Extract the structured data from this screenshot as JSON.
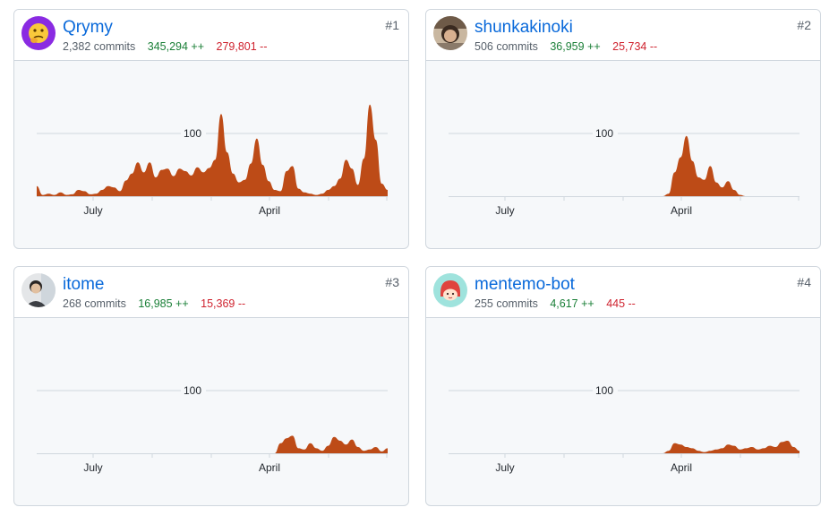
{
  "colors": {
    "area": "#bd4b17",
    "link": "#0969da",
    "additions": "#1a7f37",
    "deletions": "#cf222e"
  },
  "contributors": [
    {
      "username": "Qrymy",
      "rank": "#1",
      "commits": "2,382 commits",
      "additions": "345,294 ++",
      "deletions": "279,801 --",
      "avatar_icon": "thinking-face-icon",
      "chart_data": {
        "type": "area",
        "y_tick": "100",
        "x_labels": [
          "July",
          "April"
        ],
        "values": [
          16,
          2,
          4,
          2,
          6,
          2,
          3,
          10,
          8,
          3,
          4,
          10,
          16,
          14,
          8,
          25,
          36,
          54,
          38,
          54,
          30,
          42,
          44,
          32,
          44,
          40,
          33,
          46,
          38,
          45,
          58,
          131,
          70,
          36,
          22,
          26,
          52,
          92,
          50,
          24,
          10,
          8,
          40,
          48,
          12,
          6,
          4,
          2,
          4,
          10,
          16,
          28,
          58,
          44,
          18,
          60,
          146,
          90,
          20,
          10
        ]
      }
    },
    {
      "username": "shunkakinoki",
      "rank": "#2",
      "commits": "506 commits",
      "additions": "36,959 ++",
      "deletions": "25,734 --",
      "avatar_icon": "photo-avatar-icon",
      "chart_data": {
        "type": "area",
        "y_tick": "100",
        "x_labels": [
          "July",
          "April"
        ],
        "values": [
          0,
          0,
          0,
          0,
          0,
          0,
          0,
          0,
          0,
          0,
          0,
          0,
          0,
          0,
          0,
          0,
          0,
          0,
          0,
          0,
          0,
          0,
          0,
          0,
          0,
          0,
          0,
          0,
          0,
          0,
          0,
          0,
          0,
          0,
          0,
          0,
          0,
          4,
          38,
          62,
          96,
          56,
          30,
          26,
          48,
          22,
          14,
          24,
          10,
          2,
          0,
          0,
          0,
          0,
          0,
          0,
          0,
          0,
          0,
          0
        ]
      }
    },
    {
      "username": "itome",
      "rank": "#3",
      "commits": "268 commits",
      "additions": "16,985 ++",
      "deletions": "15,369 --",
      "avatar_icon": "person-avatar-icon",
      "chart_data": {
        "type": "area",
        "y_tick": "100",
        "x_labels": [
          "July",
          "April"
        ],
        "values": [
          0,
          0,
          0,
          0,
          0,
          0,
          0,
          0,
          0,
          0,
          0,
          0,
          0,
          0,
          0,
          0,
          0,
          0,
          0,
          0,
          0,
          0,
          0,
          0,
          0,
          0,
          0,
          0,
          0,
          0,
          0,
          0,
          0,
          0,
          0,
          0,
          0,
          0,
          0,
          0,
          0,
          16,
          24,
          28,
          8,
          6,
          16,
          8,
          4,
          12,
          26,
          20,
          14,
          22,
          10,
          4,
          6,
          10,
          3,
          8
        ]
      }
    },
    {
      "username": "mentemo-bot",
      "rank": "#4",
      "commits": "255 commits",
      "additions": "4,617 ++",
      "deletions": "445 --",
      "avatar_icon": "mentemo-face-icon",
      "chart_data": {
        "type": "area",
        "y_tick": "100",
        "x_labels": [
          "July",
          "April"
        ],
        "values": [
          0,
          0,
          0,
          0,
          0,
          0,
          0,
          0,
          0,
          0,
          0,
          0,
          0,
          0,
          0,
          0,
          0,
          0,
          0,
          0,
          0,
          0,
          0,
          0,
          0,
          0,
          0,
          0,
          0,
          0,
          0,
          0,
          0,
          0,
          0,
          0,
          0,
          4,
          16,
          14,
          10,
          8,
          4,
          2,
          4,
          6,
          8,
          14,
          12,
          6,
          8,
          10,
          6,
          8,
          12,
          10,
          18,
          20,
          10,
          4
        ]
      }
    }
  ]
}
